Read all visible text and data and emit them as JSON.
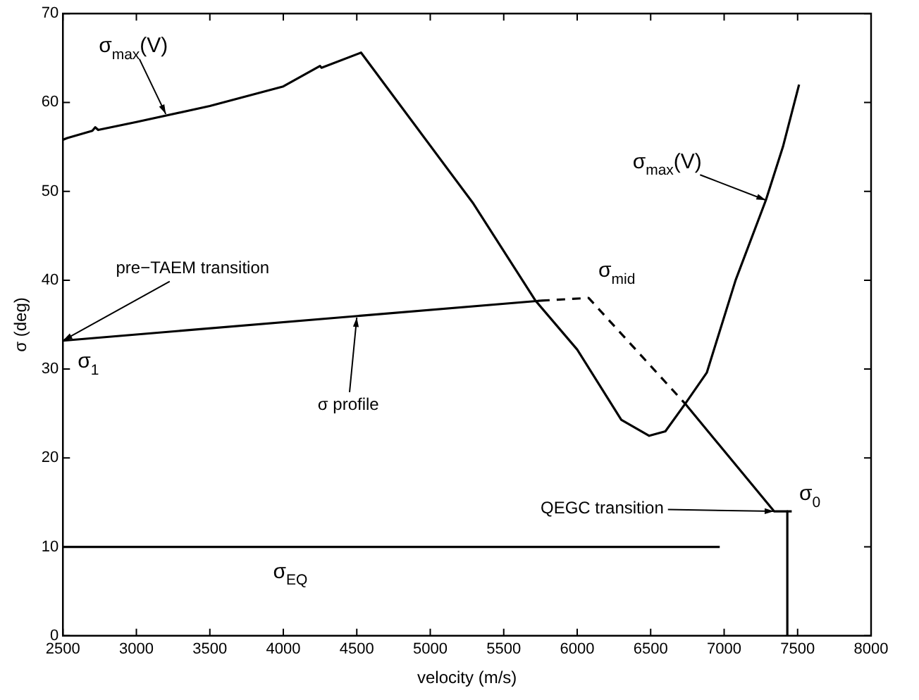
{
  "chart_data": {
    "type": "line",
    "xlabel": "velocity (m/s)",
    "ylabel": "σ (deg)",
    "xlim": [
      2500,
      8000
    ],
    "xticks": [
      2500,
      3000,
      3500,
      4000,
      4500,
      5000,
      5500,
      6000,
      6500,
      7000,
      7500,
      8000
    ],
    "ylim": [
      0,
      70
    ],
    "yticks": [
      0,
      10,
      20,
      30,
      40,
      50,
      60,
      70
    ],
    "grid": false,
    "marker": "none",
    "series": [
      {
        "color": "#000000",
        "x": [
          2500,
          2530,
          2700,
          2720,
          2740,
          3000,
          3500,
          4000,
          4250,
          4260,
          4529,
          5294,
          5716,
          6000,
          6300,
          6490,
          6600,
          6735,
          6882,
          7078,
          7284,
          7400,
          7510
        ],
        "values": [
          55.8,
          56,
          56.8,
          57.2,
          56.9,
          57.8,
          59.6,
          61.8,
          64.1,
          63.9,
          65.6,
          48.6,
          37.7,
          32.2,
          24.3,
          22.5,
          23,
          26.1,
          29.6,
          40,
          49,
          55,
          62
        ]
      },
      {
        "color": "#000000",
        "x": [
          2500,
          5755
        ],
        "values": [
          33.2,
          37.7
        ]
      },
      {
        "color": "#000000",
        "line_style": "dashed",
        "x": [
          5755,
          6078,
          6735
        ],
        "values": [
          37.7,
          38,
          26.1
        ]
      },
      {
        "color": "#000000",
        "x": [
          6735,
          7340,
          7460
        ],
        "values": [
          26.1,
          14,
          14
        ]
      },
      {
        "color": "#000000",
        "x": [
          7430,
          7430
        ],
        "values": [
          14,
          0
        ]
      },
      {
        "color": "#000000",
        "x": [
          2500,
          6970
        ],
        "values": [
          10,
          10
        ]
      }
    ],
    "annotations": [
      {
        "text": "σ$_{max}$(V)",
        "x": 3200,
        "y": 58.7
      },
      {
        "text": "σ$_{max}$(V)",
        "x": 7284,
        "y": 49
      },
      {
        "text": "pre−TAEM transition",
        "x": 2500,
        "y": 33.2
      },
      {
        "text": "σ$_{1}$",
        "x": 2500,
        "y": 33.2
      },
      {
        "text": "σ profile",
        "x": 4500,
        "y": 35.8
      },
      {
        "text": "σ$_{mid}$",
        "x": 6078,
        "y": 38
      },
      {
        "text": "QEGC transition",
        "x": 7340,
        "y": 14
      },
      {
        "text": "σ$_{0}$",
        "x": 7430,
        "y": 14
      },
      {
        "text": "σ$_{EQ}$",
        "x": 4000,
        "y": 10
      }
    ]
  }
}
